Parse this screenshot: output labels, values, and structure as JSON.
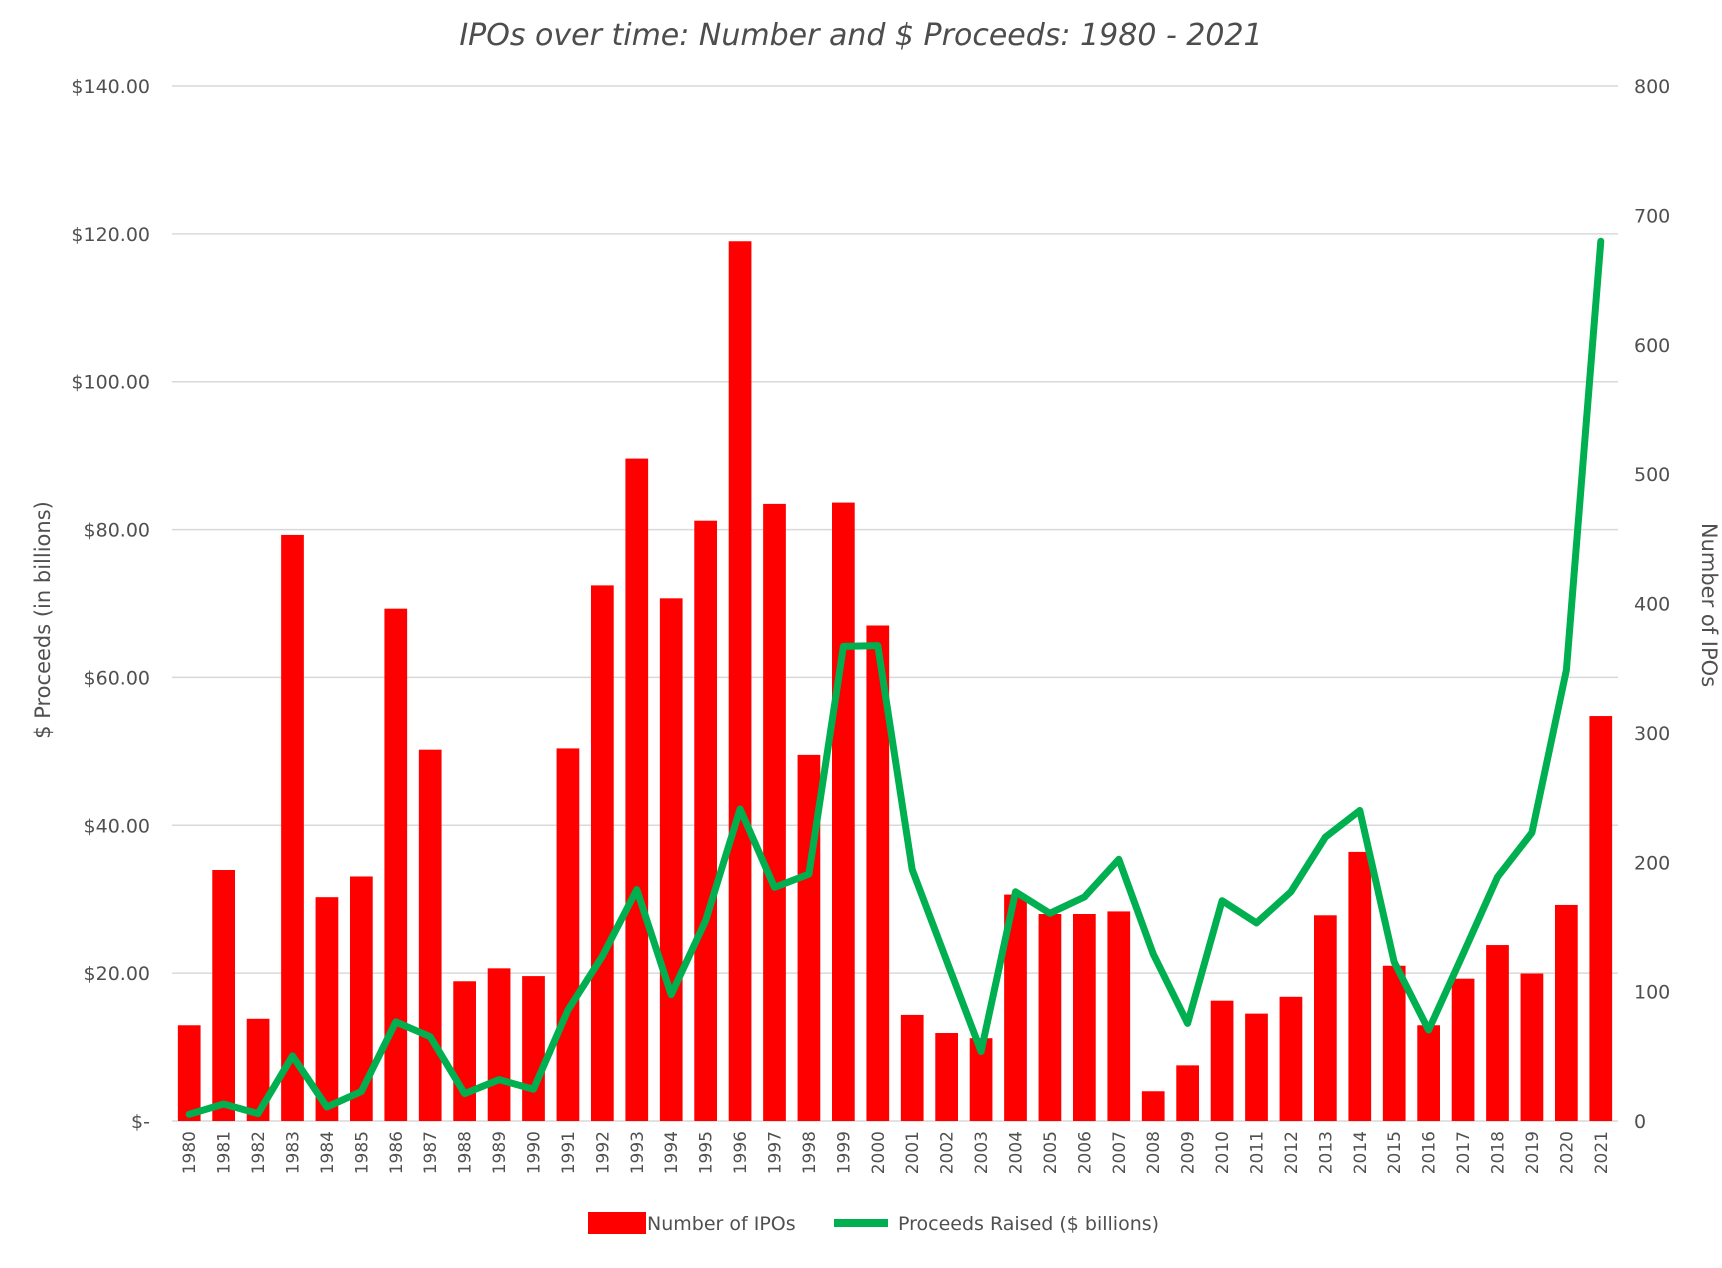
{
  "chart_data": {
    "type": "bar+line",
    "title": "IPOs over time: Number and $ Proceeds: 1980 - 2021",
    "categories": [
      "1980",
      "1981",
      "1982",
      "1983",
      "1984",
      "1985",
      "1986",
      "1987",
      "1988",
      "1989",
      "1990",
      "1991",
      "1992",
      "1993",
      "1994",
      "1995",
      "1996",
      "1997",
      "1998",
      "1999",
      "2000",
      "2001",
      "2002",
      "2003",
      "2004",
      "2005",
      "2006",
      "2007",
      "2008",
      "2009",
      "2010",
      "2011",
      "2012",
      "2013",
      "2014",
      "2015",
      "2016",
      "2017",
      "2018",
      "2019",
      "2020",
      "2021"
    ],
    "left_axis": {
      "label": "$ Proceeds (in billions)",
      "ylim": [
        0,
        140
      ],
      "ticks": [
        0,
        20,
        40,
        60,
        80,
        100,
        120,
        140
      ],
      "tick_labels": [
        "$-",
        "$20.00",
        "$40.00",
        "$60.00",
        "$80.00",
        "$100.00",
        "$120.00",
        "$140.00"
      ]
    },
    "right_axis": {
      "label": "Number of IPOs",
      "ylim": [
        0,
        800
      ],
      "ticks": [
        0,
        100,
        200,
        300,
        400,
        500,
        600,
        700,
        800
      ],
      "tick_labels": [
        "0",
        "100",
        "200",
        "300",
        "400",
        "500",
        "600",
        "700",
        "800"
      ]
    },
    "series": [
      {
        "name": "Number of IPOs",
        "kind": "bar",
        "axis": "right",
        "color": "#ff0000",
        "values": [
          74,
          194,
          79,
          453,
          173,
          189,
          396,
          287,
          108,
          118,
          112,
          288,
          414,
          512,
          404,
          464,
          680,
          477,
          283,
          478,
          383,
          82,
          68,
          64,
          175,
          160,
          160,
          162,
          23,
          43,
          93,
          83,
          96,
          159,
          208,
          120,
          74,
          110,
          136,
          114,
          167,
          313
        ]
      },
      {
        "name": "Proceeds Raised ($ billions)",
        "kind": "line",
        "axis": "left",
        "color": "#00b050",
        "values": [
          0.9,
          2.3,
          1.0,
          8.8,
          1.9,
          4.0,
          13.4,
          11.4,
          3.7,
          5.6,
          4.3,
          15.0,
          22.3,
          31.3,
          17.1,
          27.1,
          42.2,
          31.6,
          33.4,
          64.2,
          64.3,
          34.0,
          21.7,
          9.4,
          31.0,
          28.1,
          30.3,
          35.4,
          22.6,
          13.2,
          29.8,
          26.8,
          31.0,
          38.4,
          42.0,
          21.5,
          12.3,
          22.6,
          33.0,
          39.0,
          61.0,
          119.0
        ]
      }
    ],
    "legend": {
      "position": "bottom",
      "entries": [
        "Number of IPOs",
        "Proceeds Raised ($ billions)"
      ]
    },
    "grid": true
  }
}
